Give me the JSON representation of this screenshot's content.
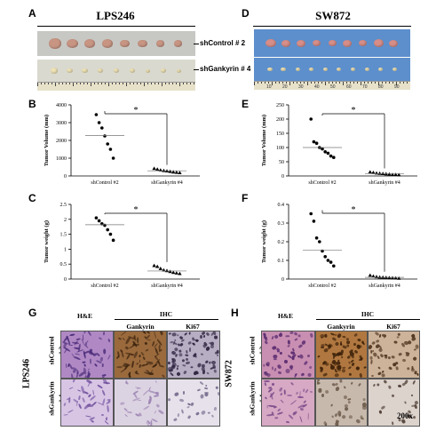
{
  "panels": {
    "A": "A",
    "B": "B",
    "C": "C",
    "D": "D",
    "E": "E",
    "F": "F",
    "G": "G",
    "H": "H"
  },
  "groups": {
    "left": {
      "title": "LPS246"
    },
    "right": {
      "title": "SW872"
    }
  },
  "photos": {
    "shcontrol_label": "shControl # 2",
    "shgankyrin_label": "shGankyrin # 4",
    "ruler_digits": [
      "10",
      "20",
      "30",
      "40",
      "50",
      "60",
      "70",
      "80",
      "90"
    ],
    "colors": {
      "control_bg": "#c7c8c4",
      "gankyrin_bg": "#d9d9cf",
      "blue_bg": "#5c8fcc",
      "tumor_left": "#c89583",
      "tumor_right_ctrl": "#d78e88",
      "tumor_small": "#efe3b6"
    }
  },
  "ihc": {
    "he": "H&E",
    "ihc": "IHC",
    "gankyrin": "Gankyrin",
    "ki67": "Ki67",
    "row_control": "shControl",
    "row_control_num": "# 2",
    "row_gankyrin": "shGankyrin",
    "row_gankyrin_num": "# 4",
    "left_group": "LPS246",
    "right_group": "SW872",
    "magnification": "200x",
    "colors": {
      "he": "#b089c4",
      "brown": "#9a6a3d",
      "ki67": "#b8aec4",
      "pale": "#dcd3e2"
    }
  },
  "chart_data": [
    {
      "id": "B",
      "type": "scatter",
      "ylabel": "Tumor Volume (mm)",
      "categories": [
        "shControl #2",
        "shGankyrin #4"
      ],
      "ylim": [
        0,
        4000
      ],
      "yticks": [
        "0",
        "1000",
        "2000",
        "3000",
        "4000"
      ],
      "ytick_values": [
        0,
        1000,
        2000,
        3000,
        4000
      ],
      "significance": "*",
      "series": [
        {
          "marker": "circle",
          "values": [
            3450,
            3000,
            2700,
            2250,
            1800,
            1500,
            1000
          ],
          "mean": 2270
        },
        {
          "marker": "triangle",
          "values": [
            420,
            380,
            330,
            300,
            280,
            250,
            220,
            200,
            180
          ],
          "mean": 290
        }
      ]
    },
    {
      "id": "C",
      "type": "scatter",
      "ylabel": "Tumor weight (g)",
      "categories": [
        "shControl #2",
        "shGankyrin #4"
      ],
      "ylim": [
        0,
        2.5
      ],
      "yticks": [
        "0",
        "0.5",
        "1",
        "1.5",
        "2",
        "2.5"
      ],
      "ytick_values": [
        0,
        0.5,
        1,
        1.5,
        2,
        2.5
      ],
      "significance": "*",
      "series": [
        {
          "marker": "circle",
          "values": [
            2.05,
            1.95,
            1.85,
            1.8,
            1.65,
            1.5,
            1.3
          ],
          "mean": 1.82
        },
        {
          "marker": "triangle",
          "values": [
            0.45,
            0.42,
            0.35,
            0.3,
            0.28,
            0.25,
            0.22,
            0.2,
            0.18
          ],
          "mean": 0.27
        }
      ]
    },
    {
      "id": "E",
      "type": "scatter",
      "ylabel": "Tumor Volume (mm)",
      "categories": [
        "shControl #2",
        "shGankyrin #4"
      ],
      "ylim": [
        0,
        250
      ],
      "yticks": [
        "0",
        "50",
        "100",
        "150",
        "200",
        "250"
      ],
      "ytick_values": [
        0,
        50,
        100,
        150,
        200,
        250
      ],
      "significance": "*",
      "series": [
        {
          "marker": "circle",
          "values": [
            200,
            120,
            115,
            100,
            95,
            85,
            80,
            70,
            65
          ],
          "mean": 100
        },
        {
          "marker": "triangle",
          "values": [
            14,
            12,
            10,
            9,
            8,
            7,
            6,
            5,
            5,
            4
          ],
          "mean": 8
        }
      ]
    },
    {
      "id": "F",
      "type": "scatter",
      "ylabel": "Tumor weight (g)",
      "categories": [
        "shControl #2",
        "shGankyrin #4"
      ],
      "ylim": [
        0,
        0.4
      ],
      "yticks": [
        "0",
        "0.1",
        "0.2",
        "0.3",
        "0.4"
      ],
      "ytick_values": [
        0,
        0.1,
        0.2,
        0.3,
        0.4
      ],
      "significance": "*",
      "series": [
        {
          "marker": "circle",
          "values": [
            0.35,
            0.31,
            0.22,
            0.2,
            0.15,
            0.12,
            0.1,
            0.09,
            0.07
          ],
          "mean": 0.155
        },
        {
          "marker": "triangle",
          "values": [
            0.02,
            0.015,
            0.012,
            0.01,
            0.009,
            0.008,
            0.007,
            0.006,
            0.005,
            0.004
          ],
          "mean": 0.009
        }
      ]
    }
  ]
}
